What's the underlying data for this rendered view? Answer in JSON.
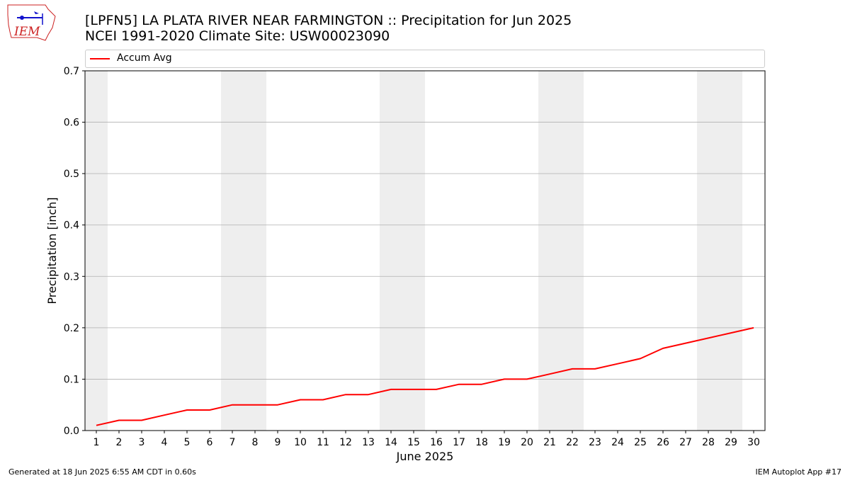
{
  "header": {
    "title_line1": "[LPFN5] LA PLATA RIVER NEAR FARMINGTON :: Precipitation for Jun 2025",
    "title_line2": "NCEI 1991-2020 Climate Site: USW00023090"
  },
  "logo": {
    "text": "IEM"
  },
  "footer": {
    "left": "Generated at 18 Jun 2025 6:55 AM CDT in 0.60s",
    "right": "IEM Autoplot App #17"
  },
  "colors": {
    "series": "#ff0000",
    "weekend_band": "#eeeeee",
    "grid": "#b0b0b0",
    "logo": "#cc2222"
  },
  "chart_data": {
    "type": "line",
    "xlabel": "June 2025",
    "ylabel": "Precipitation [inch]",
    "xlim": [
      0.5,
      30.5
    ],
    "ylim": [
      0,
      0.7
    ],
    "x": [
      1,
      2,
      3,
      4,
      5,
      6,
      7,
      8,
      9,
      10,
      11,
      12,
      13,
      14,
      15,
      16,
      17,
      18,
      19,
      20,
      21,
      22,
      23,
      24,
      25,
      26,
      27,
      28,
      29,
      30
    ],
    "y_ticks": [
      "0.0",
      "0.1",
      "0.2",
      "0.3",
      "0.4",
      "0.5",
      "0.6",
      "0.7"
    ],
    "weekend_days": [
      1,
      7,
      8,
      14,
      15,
      21,
      22,
      28,
      29
    ],
    "grid": "horizontal",
    "legend_position": "top",
    "series": [
      {
        "name": "Accum Avg",
        "values": [
          0.01,
          0.02,
          0.02,
          0.03,
          0.04,
          0.04,
          0.05,
          0.05,
          0.05,
          0.06,
          0.06,
          0.07,
          0.07,
          0.08,
          0.08,
          0.08,
          0.09,
          0.09,
          0.1,
          0.1,
          0.11,
          0.12,
          0.12,
          0.13,
          0.14,
          0.16,
          0.17,
          0.18,
          0.19,
          0.2
        ]
      }
    ]
  }
}
